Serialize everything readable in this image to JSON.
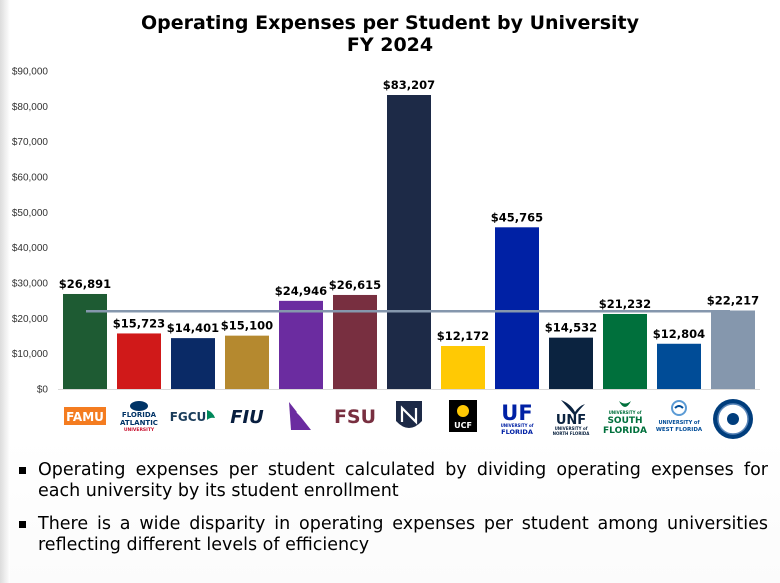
{
  "title_line1": "Operating Expenses per Student by University",
  "title_line2": "FY 2024",
  "chart_data": {
    "type": "bar",
    "title": "Operating Expenses per Student by University FY 2024",
    "categories": [
      "FAMU",
      "FAU",
      "FGCU",
      "FIU",
      "NCF",
      "FSU",
      "NEW",
      "UCF",
      "UF",
      "UNF",
      "USF",
      "UWF",
      "FPU"
    ],
    "values": [
      26891,
      15723,
      14401,
      15100,
      24946,
      26615,
      83207,
      12172,
      45765,
      14532,
      21232,
      12804,
      22217
    ],
    "value_labels": [
      "$26,891",
      "$15,723",
      "$14,401",
      "$15,100",
      "$24,946",
      "$26,615",
      "$83,207",
      "$12,172",
      "$45,765",
      "$14,532",
      "$21,232",
      "$12,804",
      "$22,217"
    ],
    "bar_colors": [
      "#1e5b33",
      "#d01919",
      "#0a2a66",
      "#b5892f",
      "#6b2ca0",
      "#782f40",
      "#1d2a47",
      "#ffc904",
      "#0021a5",
      "#0b2340",
      "#00703c",
      "#004c97",
      "#8597ad"
    ],
    "reference_line_value": 22000,
    "reference_line_color": "#8597ad",
    "yticks": [
      "$0",
      "$10,000",
      "$20,000",
      "$30,000",
      "$40,000",
      "$50,000",
      "$60,000",
      "$70,000",
      "$80,000",
      "$90,000"
    ],
    "ylim": [
      0,
      90000
    ],
    "grid": false,
    "legend": "none",
    "xlabel": "",
    "ylabel": ""
  },
  "logos": [
    {
      "name": "famu-logo",
      "text": "FAMU",
      "color": "#f47c20",
      "icon": "famu-wordmark"
    },
    {
      "name": "fau-logo",
      "line1": "FLORIDA",
      "line2": "ATLANTIC",
      "line3": "UNIVERSITY",
      "color": "#003366",
      "icon": "owl-icon"
    },
    {
      "name": "fgcu-logo",
      "text": "FGCU",
      "color": "#00885a",
      "icon": "eagle-icon"
    },
    {
      "name": "fiu-logo",
      "text": "FIU",
      "color": "#081e3f",
      "icon": "fiu-wordmark"
    },
    {
      "name": "ncf-logo",
      "color": "#6b2ca0",
      "icon": "sail-icon"
    },
    {
      "name": "fsu-logo",
      "text": "FSU",
      "color": "#782f40",
      "icon": "fsu-wordmark"
    },
    {
      "name": "new-logo",
      "color": "#1d2a47",
      "icon": "shield-icon"
    },
    {
      "name": "ucf-logo",
      "text": "UCF",
      "color": "#000000",
      "icon": "pegasus-icon"
    },
    {
      "name": "uf-logo",
      "text": "UF",
      "line2": "UNIVERSITY of",
      "line3": "FLORIDA",
      "color": "#0021a5",
      "icon": "uf-wordmark"
    },
    {
      "name": "unf-logo",
      "text": "UNF",
      "line2": "UNIVERSITY of",
      "line3": "NORTH FLORIDA",
      "color": "#0b2340",
      "icon": "osprey-icon"
    },
    {
      "name": "usf-logo",
      "line1": "UNIVERSITY of",
      "line2": "SOUTH",
      "line3": "FLORIDA",
      "color": "#00703c",
      "icon": "bull-icon"
    },
    {
      "name": "uwf-logo",
      "line1": "UNIVERSITY of",
      "line2": "WEST FLORIDA",
      "color": "#004c97",
      "icon": "wave-icon"
    },
    {
      "name": "fpu-logo",
      "color": "#003d7c",
      "icon": "seal-icon"
    }
  ],
  "bullets": [
    "Operating expenses per student calculated by dividing operating expenses for each university by its student enrollment",
    "There is a wide disparity in operating expenses per student among universities reflecting different levels of efficiency"
  ]
}
